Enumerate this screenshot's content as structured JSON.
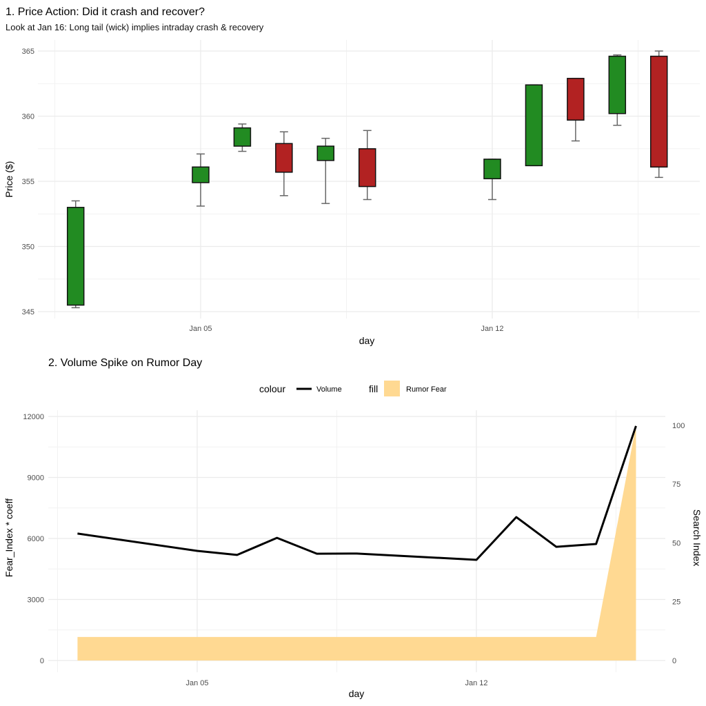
{
  "colors": {
    "up": "#228B22",
    "down": "#B22222",
    "wick": "#666666",
    "volume": "#000000",
    "fear": "#FFD992"
  },
  "chart_data": [
    {
      "type": "candlestick",
      "title": "1. Price Action: Did it crash and recover?",
      "subtitle": "Look at Jan 16: Long tail (wick) implies intraday crash & recovery",
      "xlabel": "day",
      "ylabel": "Price ($)",
      "ylim": [
        344.5,
        365.8
      ],
      "yticks": [
        345,
        350,
        355,
        360,
        365
      ],
      "xticks": [
        {
          "day": 5,
          "label": "Jan 05"
        },
        {
          "day": 12,
          "label": "Jan 12"
        }
      ],
      "candles": [
        {
          "day": 2,
          "open": 345.5,
          "close": 353.0,
          "high": 353.5,
          "low": 345.3
        },
        {
          "day": 5,
          "open": 354.9,
          "close": 356.1,
          "high": 357.1,
          "low": 353.1
        },
        {
          "day": 6,
          "open": 357.7,
          "close": 359.1,
          "high": 359.4,
          "low": 357.3
        },
        {
          "day": 7,
          "open": 357.9,
          "close": 355.7,
          "high": 358.8,
          "low": 353.9
        },
        {
          "day": 8,
          "open": 356.6,
          "close": 357.7,
          "high": 358.3,
          "low": 353.3
        },
        {
          "day": 9,
          "open": 357.5,
          "close": 354.6,
          "high": 358.9,
          "low": 353.6
        },
        {
          "day": 12,
          "open": 355.2,
          "close": 356.7,
          "high": 356.7,
          "low": 353.6
        },
        {
          "day": 13,
          "open": 356.2,
          "close": 362.4,
          "high": 362.4,
          "low": 356.2
        },
        {
          "day": 14,
          "open": 362.9,
          "close": 359.7,
          "high": 362.9,
          "low": 358.1
        },
        {
          "day": 15,
          "open": 360.2,
          "close": 364.6,
          "high": 364.7,
          "low": 359.3
        },
        {
          "day": 16,
          "open": 364.6,
          "close": 356.1,
          "high": 365.0,
          "low": 355.3
        }
      ]
    },
    {
      "type": "line+area",
      "title": "2. Volume Spike on Rumor Day",
      "xlabel": "day",
      "ylabel": "Fear_Index * coeff",
      "y2label": "Search Index",
      "ylim": [
        -500,
        12400
      ],
      "yticks": [
        0,
        3000,
        6000,
        9000,
        12000
      ],
      "y2ticks": [
        0,
        25,
        50,
        75,
        100
      ],
      "coeff": 115.6,
      "xticks": [
        {
          "day": 5,
          "label": "Jan 05"
        },
        {
          "day": 12,
          "label": "Jan 12"
        }
      ],
      "legend": {
        "position": "top",
        "colour_title": "colour",
        "colour_label": "Volume",
        "fill_title": "fill",
        "fill_label": "Rumor Fear"
      },
      "series": [
        {
          "name": "Volume",
          "days": [
            2,
            5,
            6,
            7,
            8,
            9,
            12,
            13,
            14,
            15,
            16
          ],
          "values": [
            6240,
            5390,
            5190,
            6030,
            5250,
            5260,
            4950,
            7050,
            5590,
            5730,
            11530
          ]
        },
        {
          "name": "Rumor Fear",
          "days": [
            2,
            5,
            6,
            7,
            8,
            9,
            12,
            13,
            14,
            15,
            16
          ],
          "values": [
            10,
            10,
            10,
            10,
            10,
            10,
            10,
            10,
            10,
            10,
            100
          ]
        }
      ]
    }
  ]
}
